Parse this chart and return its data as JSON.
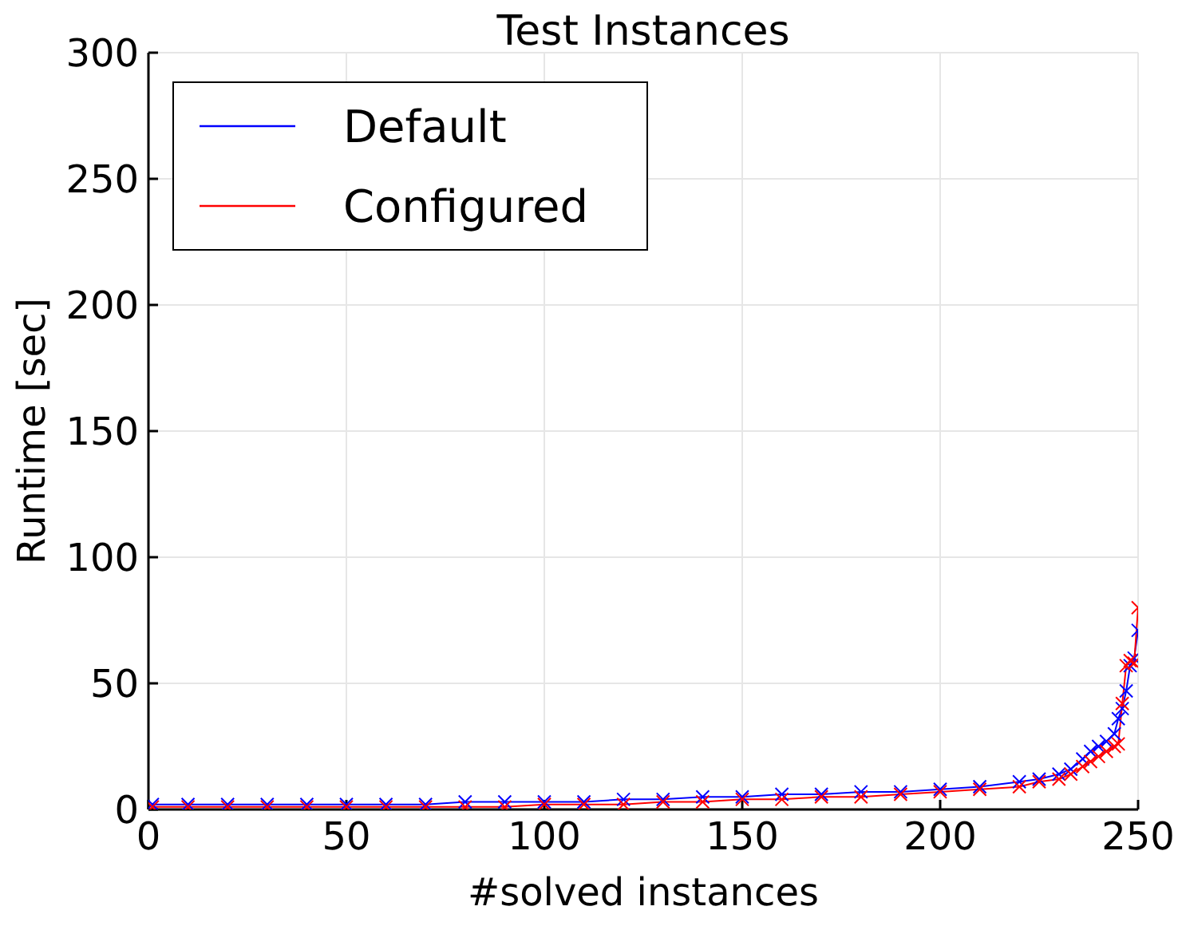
{
  "chart_data": {
    "type": "line",
    "title": "Test Instances",
    "xlabel": "#solved instances",
    "ylabel": "Runtime [sec]",
    "x": [
      1,
      10,
      20,
      30,
      40,
      50,
      60,
      70,
      80,
      90,
      100,
      110,
      120,
      130,
      140,
      150,
      160,
      170,
      180,
      190,
      200,
      210,
      220,
      225,
      230,
      233,
      236,
      238,
      240,
      242,
      244,
      245,
      246,
      247,
      248,
      249,
      250
    ],
    "series": [
      {
        "name": "Default",
        "color": "#0000ff",
        "values": [
          2,
          2,
          2,
          2,
          2,
          2,
          2,
          2,
          3,
          3,
          3,
          3,
          4,
          4,
          5,
          5,
          6,
          6,
          7,
          7,
          8,
          9,
          11,
          12,
          14,
          16,
          20,
          23,
          25,
          27,
          30,
          36,
          40,
          47,
          57,
          60,
          71
        ]
      },
      {
        "name": "Configured",
        "color": "#ff0000",
        "values": [
          1,
          1,
          1,
          1,
          1,
          1,
          1,
          1,
          1,
          1,
          2,
          2,
          2,
          3,
          3,
          4,
          4,
          5,
          5,
          6,
          7,
          8,
          9,
          11,
          12,
          14,
          17,
          19,
          21,
          23,
          25,
          26,
          42,
          57,
          59,
          58,
          80
        ]
      }
    ],
    "xlim": [
      0,
      250
    ],
    "xticks": [
      0,
      50,
      100,
      150,
      200,
      250
    ],
    "ylim": [
      0,
      300
    ],
    "yticks": [
      0,
      50,
      100,
      150,
      200,
      250,
      300
    ],
    "grid": true,
    "legend": "top left",
    "marker": "cross",
    "line_style": "solid"
  }
}
